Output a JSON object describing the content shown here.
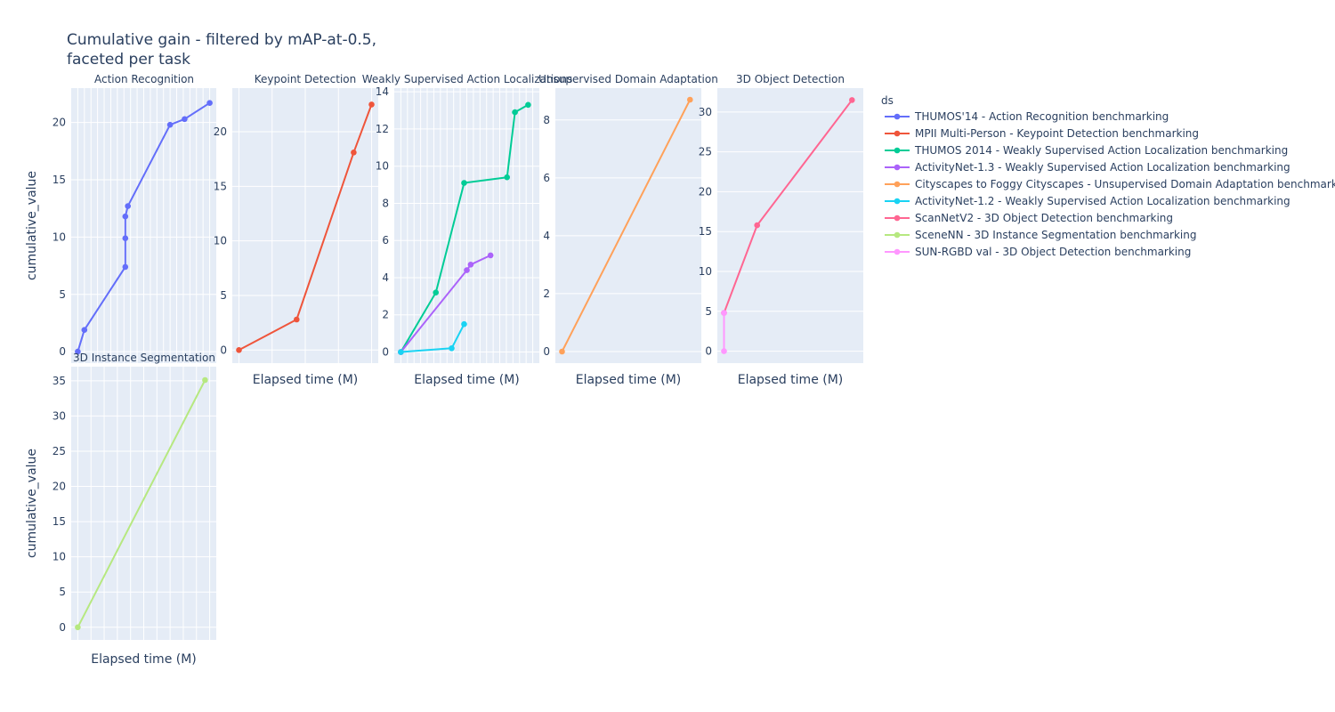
{
  "chart_data": {
    "type": "line",
    "title_lines": [
      "Cumulative gain - filtered by mAP-at-0.5,",
      "faceted per task"
    ],
    "xlabel": "Elapsed time (M)",
    "ylabel": "cumulative_value",
    "legend": {
      "title": "ds",
      "placement": "right",
      "entries": [
        {
          "name": "THUMOS'14 - Action Recognition benchmarking",
          "color": "#636efa"
        },
        {
          "name": "MPII Multi-Person - Keypoint Detection benchmarking",
          "color": "#EF553B"
        },
        {
          "name": "THUMOS 2014 - Weakly Supervised Action Localization benchmarking",
          "color": "#00cc96"
        },
        {
          "name": "ActivityNet-1.3 - Weakly Supervised Action Localization benchmarking",
          "color": "#ab63fa"
        },
        {
          "name": "Cityscapes to Foggy Cityscapes - Unsupervised Domain Adaptation benchmarking",
          "color": "#FFA15A"
        },
        {
          "name": "ActivityNet-1.2 - Weakly Supervised Action Localization benchmarking",
          "color": "#19d3f3"
        },
        {
          "name": "ScanNetV2 - 3D Object Detection benchmarking",
          "color": "#FF6692"
        },
        {
          "name": "SceneNN - 3D Instance Segmentation benchmarking",
          "color": "#B6E880"
        },
        {
          "name": "SUN-RGBD val - 3D Object Detection benchmarking",
          "color": "#FF97FF"
        }
      ]
    },
    "facets": [
      {
        "name": "Action Recognition",
        "xlim": [
          -1,
          21
        ],
        "ylim": [
          -1,
          23
        ],
        "yticks": [
          0,
          5,
          10,
          15,
          20
        ],
        "xminor": 1,
        "series": [
          {
            "name": "THUMOS'14 - Action Recognition benchmarking",
            "color": "#636efa",
            "x": [
              0,
              1,
              7.2,
              7.2,
              7.2,
              7.6,
              14,
              16.2,
              20
            ],
            "y": [
              0,
              1.9,
              7.4,
              9.9,
              11.8,
              12.7,
              19.8,
              20.3,
              21.7
            ]
          }
        ]
      },
      {
        "name": "Keypoint Detection",
        "xlim": [
          -1,
          21
        ],
        "ylim": [
          -1.2,
          24
        ],
        "yticks": [
          0,
          5,
          10,
          15,
          20
        ],
        "xminor": 5,
        "series": [
          {
            "name": "MPII Multi-Person - Keypoint Detection benchmarking",
            "color": "#EF553B",
            "x": [
              0,
              8.7,
              17.3,
              20
            ],
            "y": [
              0,
              2.8,
              18.1,
              22.5
            ]
          }
        ]
      },
      {
        "name": "Weakly Supervised Action Localizations",
        "xlim": [
          -1,
          21
        ],
        "ylim": [
          -0.6,
          14.2
        ],
        "yticks": [
          0,
          2,
          4,
          6,
          8,
          10,
          12,
          14
        ],
        "xminor": 1,
        "series": [
          {
            "name": "THUMOS 2014 - Weakly Supervised Action Localization benchmarking",
            "color": "#00cc96",
            "x": [
              0,
              5.3,
              9.6,
              16.1,
              17.3,
              19.3
            ],
            "y": [
              0,
              3.2,
              9.1,
              9.4,
              12.9,
              13.3
            ]
          },
          {
            "name": "ActivityNet-1.3 - Weakly Supervised Action Localization benchmarking",
            "color": "#ab63fa",
            "x": [
              0,
              10,
              10.6,
              13.6
            ],
            "y": [
              0,
              4.4,
              4.7,
              5.2
            ]
          },
          {
            "name": "ActivityNet-1.2 - Weakly Supervised Action Localization benchmarking",
            "color": "#19d3f3",
            "x": [
              0,
              7.7,
              9.6
            ],
            "y": [
              0,
              0.2,
              1.5
            ]
          }
        ]
      },
      {
        "name": "Unsupervised Domain Adaptation",
        "xlim": [
          -1,
          21
        ],
        "ylim": [
          -0.4,
          9.1
        ],
        "yticks": [
          0,
          2,
          4,
          6,
          8
        ],
        "xminor": 0,
        "series": [
          {
            "name": "Cityscapes to Foggy Cityscapes - Unsupervised Domain Adaptation benchmarking",
            "color": "#FFA15A",
            "x": [
              0,
              19.3
            ],
            "y": [
              0,
              8.7
            ]
          }
        ]
      },
      {
        "name": "3D Object Detection",
        "xlim": [
          -1,
          21
        ],
        "ylim": [
          -1.5,
          33
        ],
        "yticks": [
          0,
          5,
          10,
          15,
          20,
          25,
          30
        ],
        "xminor": 0,
        "series": [
          {
            "name": "ScanNetV2 - 3D Object Detection benchmarking",
            "color": "#FF6692",
            "x": [
              0,
              5,
              19.3
            ],
            "y": [
              4.8,
              15.8,
              31.5
            ]
          },
          {
            "name": "SUN-RGBD val - 3D Object Detection benchmarking",
            "color": "#FF97FF",
            "x": [
              0,
              0
            ],
            "y": [
              0,
              4.8
            ]
          }
        ]
      },
      {
        "name": "3D Instance Segmentation",
        "xlim": [
          -1,
          21
        ],
        "ylim": [
          -1.8,
          37
        ],
        "yticks": [
          0,
          5,
          10,
          15,
          20,
          25,
          30,
          35
        ],
        "xminor": 2,
        "series": [
          {
            "name": "SceneNN - 3D Instance Segmentation benchmarking",
            "color": "#B6E880",
            "x": [
              0,
              19.3
            ],
            "y": [
              0,
              35.1
            ]
          }
        ]
      }
    ]
  }
}
